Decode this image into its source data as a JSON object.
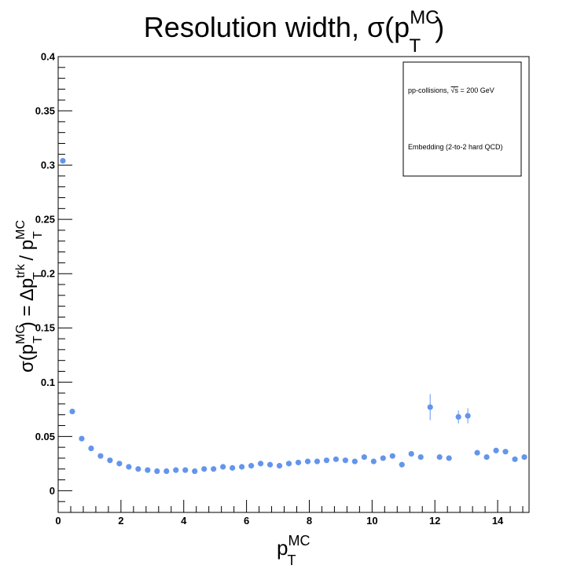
{
  "chart_data": {
    "type": "scatter",
    "title": {
      "main": "Resolution width, σ(p",
      "sup": "MC",
      "sub": "T",
      "close": ")"
    },
    "xlabel": {
      "base": "p",
      "sup": "MC",
      "sub": "T"
    },
    "ylabel": {
      "part1": "σ(p",
      "sup1": "MC",
      "sub1": "T",
      "part2": ") = Δp",
      "sup2": "trk",
      "sub2": "T",
      "part3": " / p",
      "sup3": "MC",
      "sub3": "T"
    },
    "xlim": [
      0,
      15
    ],
    "ylim": [
      -0.02,
      0.4
    ],
    "xticks": [
      "0",
      "2",
      "4",
      "6",
      "8",
      "10",
      "12",
      "14"
    ],
    "yticks": [
      "0",
      "0.05",
      "0.1",
      "0.15",
      "0.2",
      "0.25",
      "0.3",
      "0.35",
      "0.4"
    ],
    "marker_color": "#6495ED",
    "legend": {
      "position": "top-right",
      "line1_pre": "pp-collisions, ",
      "line1_sqrt": "√s",
      "line1_post": " = 200 GeV",
      "line2": "Embedding (2-to-2 hard QCD)"
    },
    "x": [
      0.15,
      0.45,
      0.75,
      1.05,
      1.35,
      1.65,
      1.95,
      2.25,
      2.55,
      2.85,
      3.15,
      3.45,
      3.75,
      4.05,
      4.35,
      4.65,
      4.95,
      5.25,
      5.55,
      5.85,
      6.15,
      6.45,
      6.75,
      7.05,
      7.35,
      7.65,
      7.95,
      8.25,
      8.55,
      8.85,
      9.15,
      9.45,
      9.75,
      10.05,
      10.35,
      10.65,
      10.95,
      11.25,
      11.55,
      11.85,
      12.15,
      12.45,
      12.75,
      13.05,
      13.35,
      13.65,
      13.95,
      14.25,
      14.55,
      14.85
    ],
    "y": [
      0.304,
      0.073,
      0.048,
      0.039,
      0.032,
      0.028,
      0.025,
      0.022,
      0.02,
      0.019,
      0.018,
      0.018,
      0.019,
      0.019,
      0.018,
      0.02,
      0.02,
      0.022,
      0.021,
      0.022,
      0.023,
      0.025,
      0.024,
      0.023,
      0.025,
      0.026,
      0.027,
      0.027,
      0.028,
      0.029,
      0.028,
      0.027,
      0.031,
      0.027,
      0.03,
      0.032,
      0.024,
      0.034,
      0.031,
      0.077,
      0.031,
      0.03,
      0.068,
      0.069,
      0.035,
      0.031,
      0.037,
      0.036,
      0.029,
      0.031
    ],
    "yerr": [
      0.002,
      0.001,
      0.001,
      0.001,
      0.001,
      0.001,
      0.001,
      0.001,
      0.001,
      0.001,
      0.001,
      0.001,
      0.001,
      0.001,
      0.001,
      0.001,
      0.001,
      0.001,
      0.001,
      0.001,
      0.001,
      0.001,
      0.001,
      0.001,
      0.001,
      0.001,
      0.001,
      0.001,
      0.001,
      0.001,
      0.001,
      0.001,
      0.001,
      0.002,
      0.002,
      0.002,
      0.002,
      0.002,
      0.002,
      0.012,
      0.002,
      0.002,
      0.006,
      0.007,
      0.002,
      0.002,
      0.002,
      0.002,
      0.002,
      0.002
    ]
  }
}
